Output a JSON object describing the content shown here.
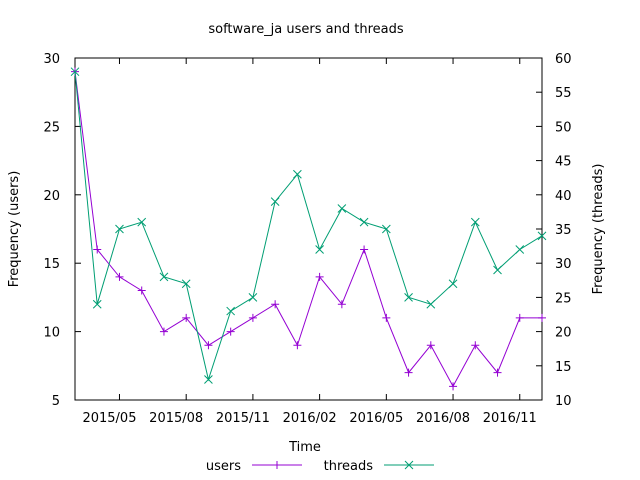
{
  "chart_data": {
    "type": "line",
    "title": "software_ja users and threads",
    "xlabel": "Time",
    "ylabel": "Frequency (users)",
    "y2label": "Frequency (threads)",
    "x": [
      "2015-03",
      "2015-04",
      "2015-05",
      "2015-06",
      "2015-07",
      "2015-08",
      "2015-09",
      "2015-10",
      "2015-11",
      "2015-12",
      "2016-01",
      "2016-02",
      "2016-03",
      "2016-04",
      "2016-05",
      "2016-06",
      "2016-07",
      "2016-08",
      "2016-09",
      "2016-10",
      "2016-11",
      "2016-12"
    ],
    "xticks": [
      "2015-05",
      "2015-08",
      "2015-11",
      "2016-02",
      "2016-05",
      "2016-08",
      "2016-11"
    ],
    "xtick_labels": [
      "2015/05",
      "2015/08",
      "2015/11",
      "2016/02",
      "2016/05",
      "2016/08",
      "2016/11"
    ],
    "xlim": [
      "2015-03",
      "2016-12"
    ],
    "ylim": [
      5,
      30
    ],
    "yticks": [
      5,
      10,
      15,
      20,
      25,
      30
    ],
    "y2lim": [
      10,
      60
    ],
    "y2ticks": [
      10,
      15,
      20,
      25,
      30,
      35,
      40,
      45,
      50,
      55,
      60
    ],
    "grid": false,
    "legend_position": "bottom-center",
    "series": [
      {
        "name": "users",
        "axis": "left",
        "marker": "plus",
        "color": "#9400d3",
        "values": [
          29,
          16,
          14,
          13,
          10,
          11,
          9,
          10,
          11,
          12,
          9,
          14,
          12,
          16,
          11,
          7,
          9,
          6,
          9,
          7,
          11,
          11
        ]
      },
      {
        "name": "threads",
        "axis": "right",
        "marker": "cross",
        "color": "#009e73",
        "values": [
          58,
          24,
          35,
          36,
          28,
          27,
          13,
          23,
          25,
          39,
          43,
          32,
          38,
          36,
          35,
          25,
          24,
          27,
          36,
          29,
          32,
          34
        ]
      }
    ]
  }
}
